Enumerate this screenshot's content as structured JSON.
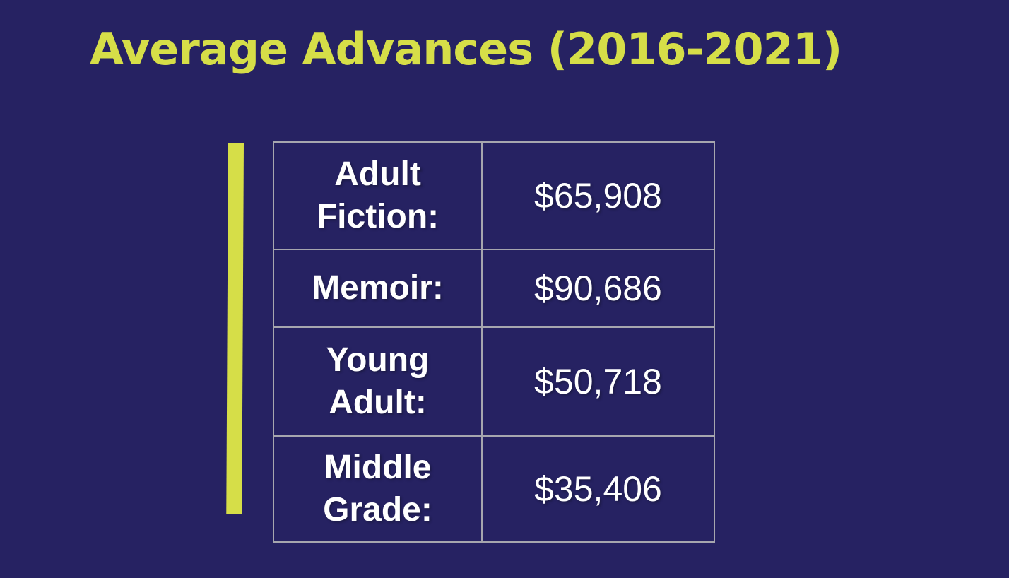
{
  "title": "Average Advances (2016-2021)",
  "colors": {
    "background": "#262262",
    "accent_yellow": "#d6de48",
    "table_border": "#a6a6ae",
    "text": "#ffffff"
  },
  "table": {
    "rows": [
      {
        "label": "Adult Fiction:",
        "value": "$65,908"
      },
      {
        "label": "Memoir:",
        "value": "$90,686"
      },
      {
        "label": "Young Adult:",
        "value": "$50,718"
      },
      {
        "label": "Middle Grade:",
        "value": "$35,406"
      }
    ]
  },
  "chart_data": {
    "type": "table",
    "title": "Average Advances (2016-2021)",
    "categories": [
      "Adult Fiction",
      "Memoir",
      "Young Adult",
      "Middle Grade"
    ],
    "values": [
      65908,
      90686,
      50718,
      35406
    ],
    "value_labels": [
      "$65,908",
      "$90,686",
      "$50,718",
      "$35,406"
    ],
    "unit": "USD",
    "layout": "two-column table, labels left (bold), values right, centered text, gray gridlines on navy background"
  }
}
